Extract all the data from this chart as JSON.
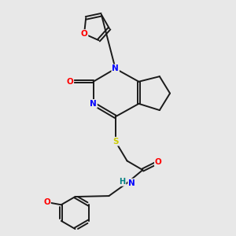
{
  "bg_color": "#e8e8e8",
  "bond_color": "#1a1a1a",
  "atom_colors": {
    "O": "#ff0000",
    "N": "#0000ff",
    "S": "#cccc00",
    "H": "#008080",
    "C": "#1a1a1a"
  },
  "fig_width": 3.0,
  "fig_height": 3.0,
  "dpi": 100,
  "lw": 1.4,
  "fs": 7.5
}
